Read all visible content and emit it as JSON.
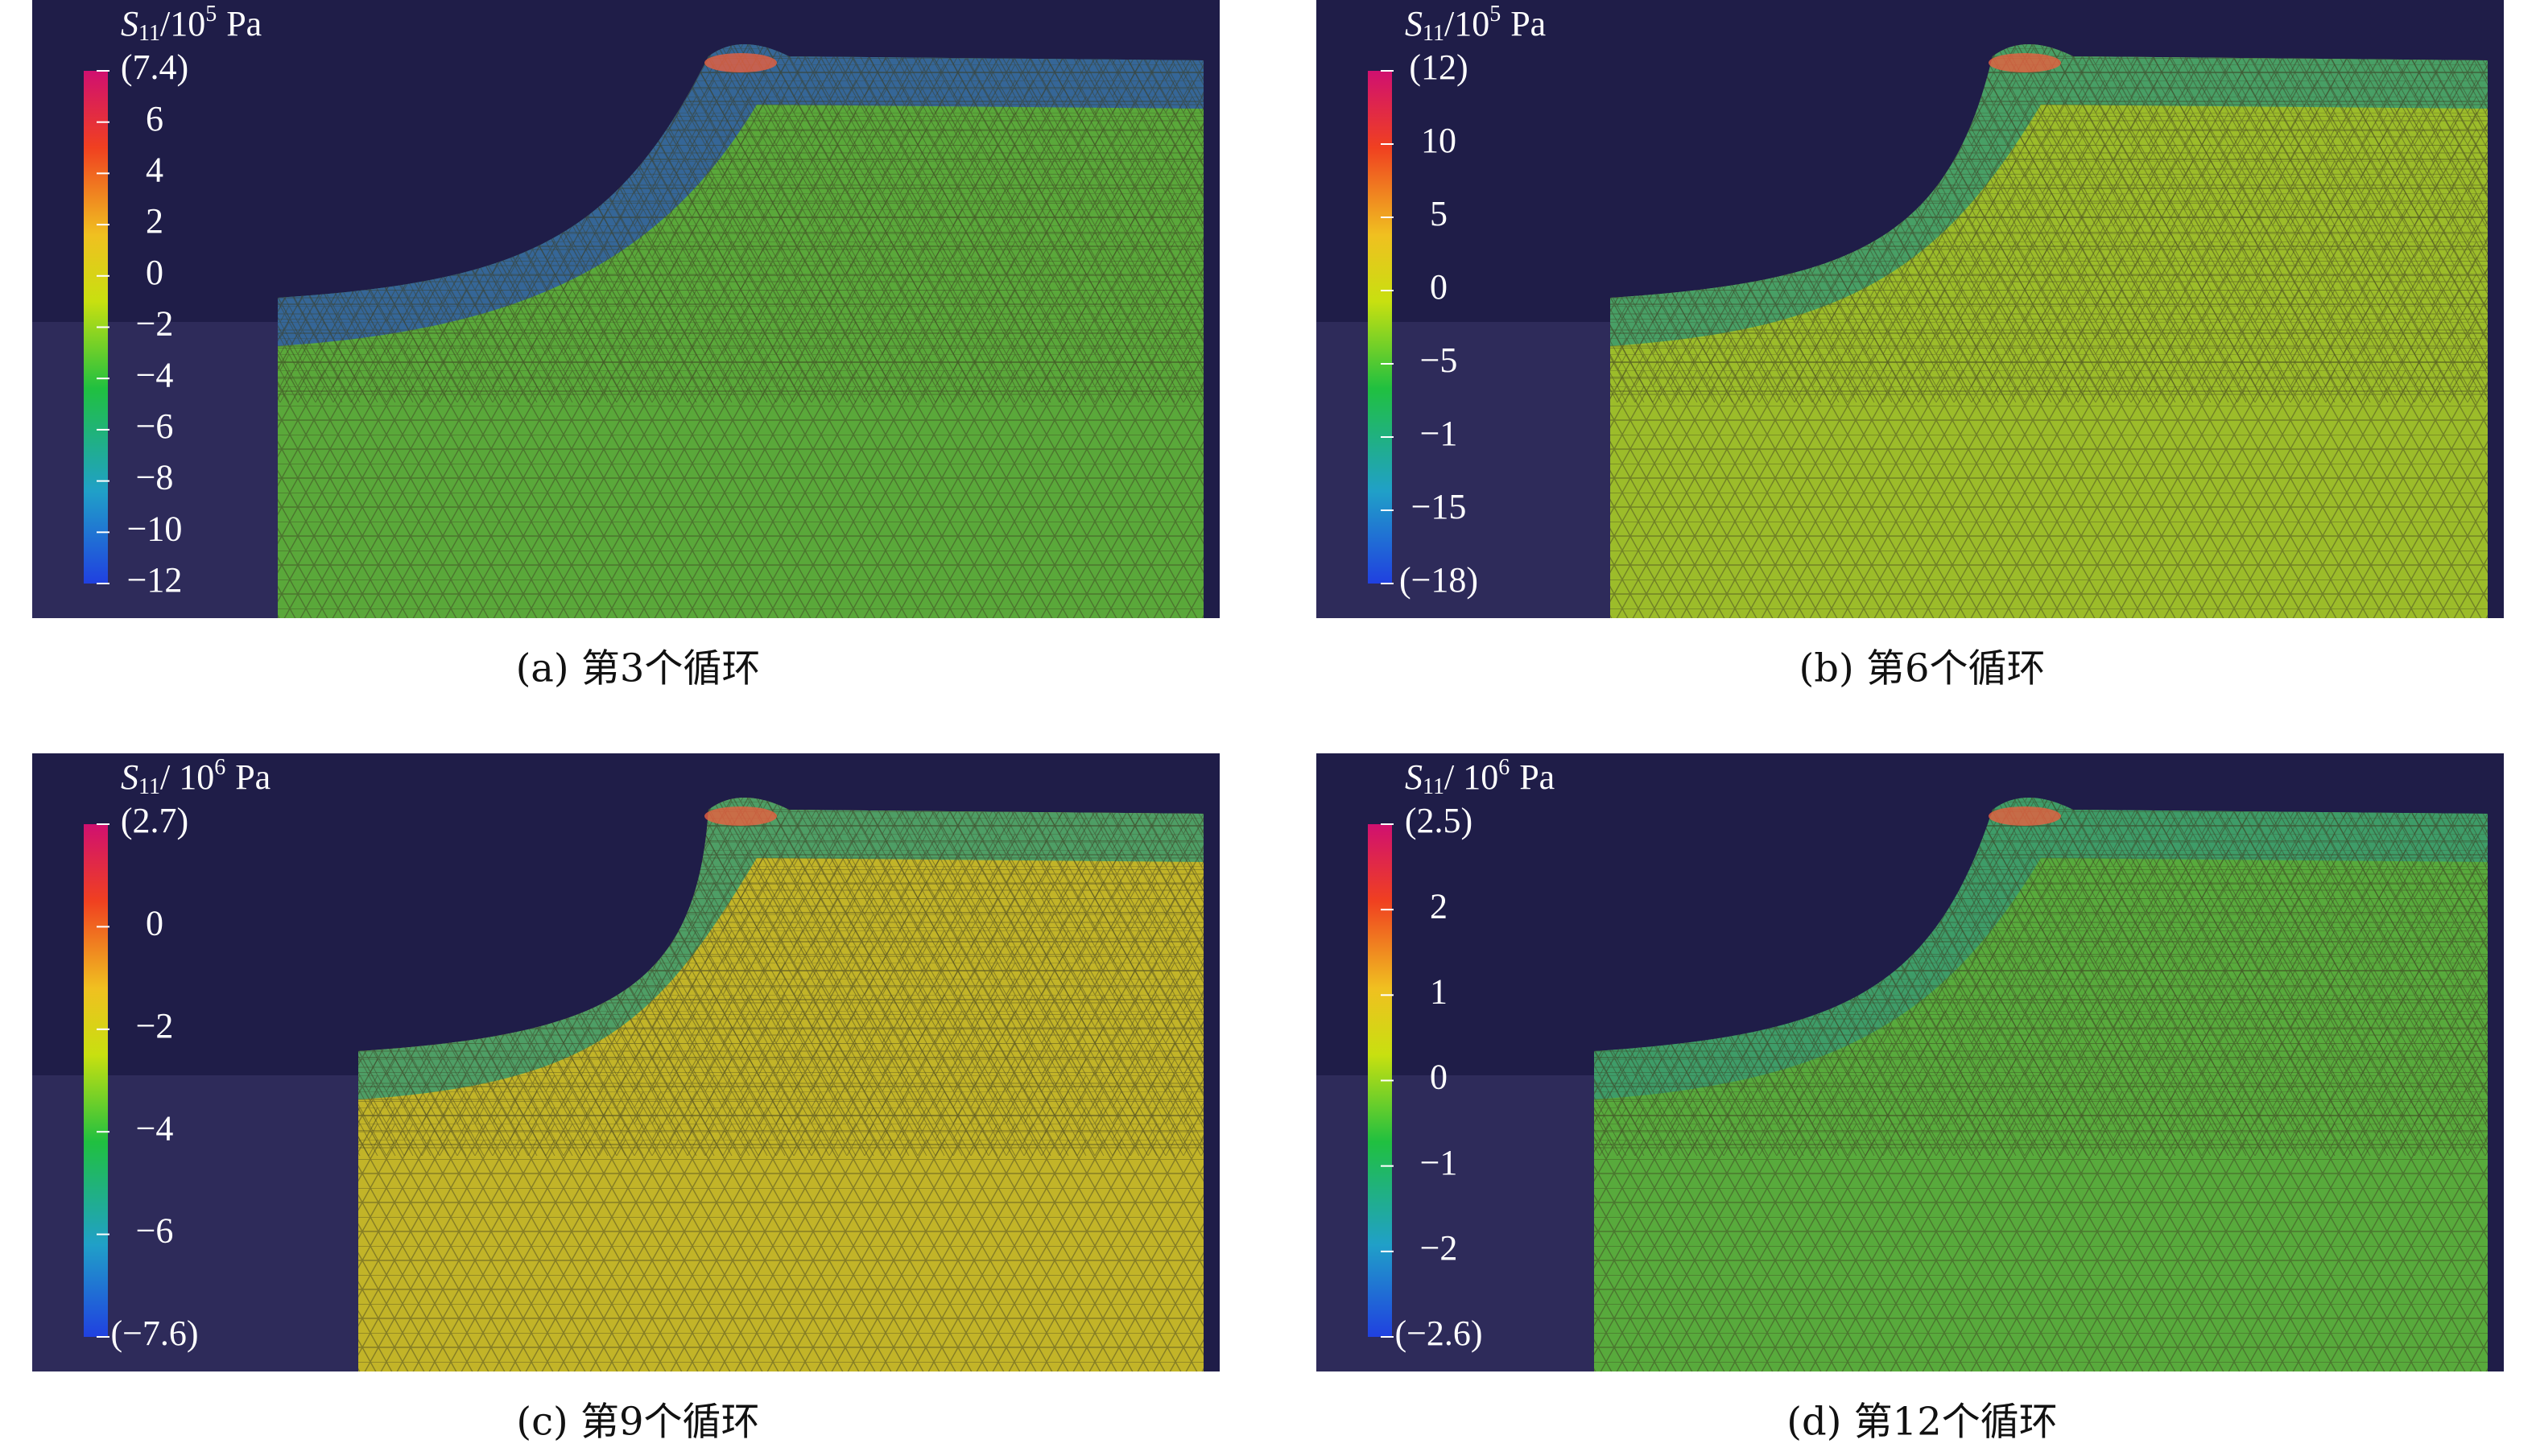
{
  "panels": [
    {
      "unit": {
        "symbol": "S",
        "sub": "11",
        "base": "/10",
        "exp": "5",
        "unit": "Pa"
      },
      "colorbar_labels": [
        "(7.4)",
        "6",
        "4",
        "2",
        "0",
        "−2",
        "−4",
        "−6",
        "−8",
        "−10",
        "−12"
      ],
      "caption": "(a) 第3个循环"
    },
    {
      "unit": {
        "symbol": "S",
        "sub": "11",
        "base": "/10",
        "exp": "5",
        "unit": "Pa"
      },
      "colorbar_labels": [
        "(12)",
        "10",
        "5",
        "0",
        "−5",
        "−1",
        "−15",
        "(−18)"
      ],
      "caption": "(b) 第6个循环"
    },
    {
      "unit": {
        "symbol": "S",
        "sub": "11",
        "base": "/ 10",
        "exp": "6",
        "unit": "Pa"
      },
      "colorbar_labels": [
        "(2.7)",
        "0",
        "−2",
        "−4",
        "−6",
        "(−7.6)"
      ],
      "caption": "(c) 第9个循环"
    },
    {
      "unit": {
        "symbol": "S",
        "sub": "11",
        "base": "/ 10",
        "exp": "6",
        "unit": "Pa"
      },
      "colorbar_labels": [
        "(2.5)",
        "2",
        "1",
        "0",
        "−1",
        "−2",
        "(−2.6)"
      ],
      "caption": "(d) 第12个循环"
    }
  ]
}
